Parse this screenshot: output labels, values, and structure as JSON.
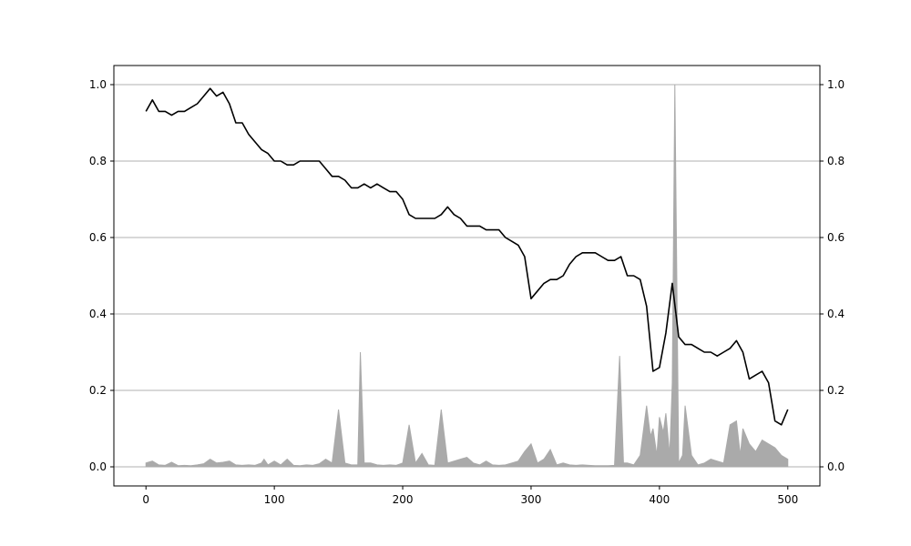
{
  "chart_data": {
    "type": "line",
    "title": "",
    "xlabel": "",
    "ylabel": "",
    "xlim": [
      -25,
      525
    ],
    "ylim": [
      -0.05,
      1.05
    ],
    "grid": "y",
    "x_ticks": [
      0,
      100,
      200,
      300,
      400,
      500
    ],
    "x_tick_labels": [
      "0",
      "100",
      "200",
      "300",
      "400",
      "500"
    ],
    "y_ticks": [
      0.0,
      0.2,
      0.4,
      0.6,
      0.8,
      1.0
    ],
    "y_tick_labels": [
      "0.0",
      "0.2",
      "0.4",
      "0.6",
      "0.8",
      "1.0"
    ],
    "right_y_tick_labels": [
      "0.0",
      "0.2",
      "0.4",
      "0.6",
      "0.8",
      "1.0"
    ],
    "colors": {
      "line": "#000000",
      "area": "#aaaaaa",
      "grid": "#b0b0b0"
    },
    "series": [
      {
        "kind": "line",
        "x": [
          0,
          5,
          10,
          15,
          20,
          25,
          30,
          35,
          40,
          45,
          50,
          55,
          60,
          65,
          70,
          75,
          80,
          85,
          90,
          95,
          100,
          105,
          110,
          115,
          120,
          125,
          130,
          135,
          140,
          145,
          150,
          155,
          160,
          165,
          170,
          175,
          180,
          185,
          190,
          195,
          200,
          205,
          210,
          215,
          220,
          225,
          230,
          235,
          240,
          245,
          250,
          255,
          260,
          265,
          270,
          275,
          280,
          285,
          290,
          295,
          300,
          305,
          310,
          315,
          320,
          325,
          330,
          335,
          340,
          345,
          350,
          355,
          360,
          365,
          370,
          375,
          380,
          385,
          390,
          395,
          400,
          405,
          410,
          415,
          420,
          425,
          430,
          435,
          440,
          445,
          450,
          455,
          460,
          465,
          470,
          475,
          480,
          485,
          490,
          495,
          500
        ],
        "y": [
          0.93,
          0.96,
          0.93,
          0.93,
          0.92,
          0.93,
          0.93,
          0.94,
          0.95,
          0.97,
          0.99,
          0.97,
          0.98,
          0.95,
          0.9,
          0.9,
          0.87,
          0.85,
          0.83,
          0.82,
          0.8,
          0.8,
          0.79,
          0.79,
          0.8,
          0.8,
          0.8,
          0.8,
          0.78,
          0.76,
          0.76,
          0.75,
          0.73,
          0.73,
          0.74,
          0.73,
          0.74,
          0.73,
          0.72,
          0.72,
          0.7,
          0.66,
          0.65,
          0.65,
          0.65,
          0.65,
          0.66,
          0.68,
          0.66,
          0.65,
          0.63,
          0.63,
          0.63,
          0.62,
          0.62,
          0.62,
          0.6,
          0.59,
          0.58,
          0.55,
          0.44,
          0.46,
          0.48,
          0.49,
          0.49,
          0.5,
          0.53,
          0.55,
          0.56,
          0.56,
          0.56,
          0.55,
          0.54,
          0.54,
          0.55,
          0.5,
          0.5,
          0.49,
          0.42,
          0.25,
          0.26,
          0.35,
          0.48,
          0.34,
          0.32,
          0.32,
          0.31,
          0.3,
          0.3,
          0.29,
          0.3,
          0.31,
          0.33,
          0.3,
          0.23,
          0.24,
          0.25,
          0.22,
          0.12,
          0.11,
          0.15
        ]
      },
      {
        "kind": "area",
        "x": [
          0,
          5,
          10,
          15,
          20,
          25,
          30,
          35,
          40,
          45,
          50,
          55,
          60,
          65,
          70,
          75,
          80,
          85,
          90,
          92,
          95,
          100,
          105,
          110,
          115,
          120,
          125,
          130,
          135,
          140,
          145,
          150,
          155,
          160,
          165,
          167,
          170,
          175,
          180,
          185,
          190,
          195,
          200,
          205,
          210,
          215,
          220,
          225,
          230,
          235,
          240,
          245,
          250,
          255,
          260,
          265,
          270,
          275,
          280,
          285,
          290,
          295,
          300,
          305,
          310,
          315,
          320,
          325,
          330,
          335,
          340,
          345,
          350,
          355,
          360,
          365,
          369,
          372,
          375,
          380,
          385,
          390,
          393,
          395,
          398,
          400,
          403,
          405,
          408,
          410,
          412,
          415,
          418,
          420,
          425,
          430,
          435,
          440,
          445,
          450,
          455,
          460,
          463,
          465,
          470,
          475,
          480,
          485,
          490,
          495,
          500
        ],
        "y": [
          0.01,
          0.015,
          0.005,
          0.004,
          0.012,
          0.003,
          0.004,
          0.003,
          0.005,
          0.008,
          0.02,
          0.01,
          0.012,
          0.015,
          0.005,
          0.004,
          0.005,
          0.004,
          0.01,
          0.02,
          0.005,
          0.015,
          0.005,
          0.02,
          0.004,
          0.003,
          0.005,
          0.004,
          0.008,
          0.02,
          0.01,
          0.15,
          0.01,
          0.005,
          0.005,
          0.3,
          0.01,
          0.01,
          0.005,
          0.004,
          0.005,
          0.004,
          0.01,
          0.11,
          0.01,
          0.035,
          0.005,
          0.004,
          0.15,
          0.01,
          0.015,
          0.02,
          0.025,
          0.01,
          0.005,
          0.015,
          0.005,
          0.004,
          0.005,
          0.01,
          0.015,
          0.04,
          0.06,
          0.01,
          0.02,
          0.045,
          0.005,
          0.01,
          0.005,
          0.004,
          0.005,
          0.004,
          0.003,
          0.003,
          0.003,
          0.004,
          0.29,
          0.01,
          0.01,
          0.005,
          0.03,
          0.16,
          0.08,
          0.1,
          0.03,
          0.13,
          0.09,
          0.14,
          0.03,
          0.22,
          1.0,
          0.01,
          0.03,
          0.16,
          0.03,
          0.005,
          0.01,
          0.02,
          0.015,
          0.01,
          0.11,
          0.12,
          0.03,
          0.1,
          0.06,
          0.04,
          0.07,
          0.06,
          0.05,
          0.03,
          0.02
        ]
      }
    ]
  }
}
